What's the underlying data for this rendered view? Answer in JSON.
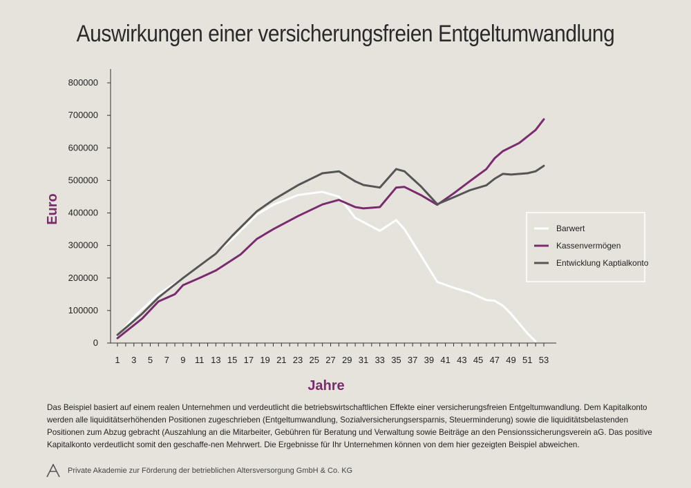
{
  "title": "Auswirkungen einer versicherungsfreien Entgeltumwandlung",
  "description": "Das Beispiel basiert auf einem realen Unternehmen und verdeutlicht die betriebswirtschaftlichen Effekte einer versicherungsfreien Entgeltumwandlung. Dem Kapitalkonto werden alle liquiditätserhöhenden Positionen zugeschrieben (Entgeltumwandlung, Sozialversicherungsersparnis, Steuerminderung) sowie die liquiditätsbelastenden Positionen zum Abzug gebracht (Auszahlung an die Mitarbeiter, Gebühren für Beratung und Verwaltung sowie Beiträge an den Pensionssicherungsverein aG. Das positive Kapitalkonto verdeutlicht somit den geschaffe-nen Mehrwert. Die Ergebnisse für Ihr Unternehmen können von dem hier gezeigten Beispiel abweichen.",
  "footer": "Private Akademie zur Förderung der betrieblichen Altersversorgung GmbH & Co. KG",
  "colors": {
    "background": "#e6e3dd",
    "barwert": "#ffffff",
    "kassenvermoegen": "#7a2b6e",
    "kapitalkonto": "#555555",
    "axis_title": "#7a2b6e"
  },
  "chart_data": {
    "type": "line",
    "xlabel": "Jahre",
    "ylabel": "Euro",
    "ylim": [
      0,
      800000
    ],
    "yticks": [
      0,
      100000,
      200000,
      300000,
      400000,
      500000,
      600000,
      700000,
      800000
    ],
    "xticks": [
      1,
      3,
      5,
      7,
      9,
      11,
      13,
      15,
      17,
      19,
      21,
      23,
      25,
      27,
      29,
      31,
      33,
      35,
      37,
      39,
      41,
      43,
      45,
      47,
      49,
      51,
      53
    ],
    "xlim": [
      1,
      53
    ],
    "grid": false,
    "legend_position": "right",
    "series": [
      {
        "name": "Barwert",
        "color": "#ffffff",
        "x": [
          1,
          3,
          6,
          9,
          12,
          15,
          18,
          20,
          23,
          26,
          28,
          30,
          33,
          35,
          36,
          38,
          40,
          42,
          44,
          46,
          47,
          48,
          49,
          51,
          52
        ],
        "y": [
          20000,
          80000,
          150000,
          200000,
          255000,
          320000,
          395000,
          425000,
          455000,
          465000,
          450000,
          385000,
          345000,
          378000,
          350000,
          270000,
          188000,
          170000,
          155000,
          132000,
          130000,
          115000,
          90000,
          30000,
          5000
        ]
      },
      {
        "name": "Kassenvermögen",
        "color": "#7a2b6e",
        "x": [
          1,
          4,
          6,
          8,
          9,
          11,
          13,
          16,
          18,
          20,
          23,
          26,
          28,
          30,
          31,
          33,
          35,
          36,
          38,
          40,
          42,
          44,
          46,
          47,
          48,
          50,
          52,
          53
        ],
        "y": [
          15000,
          75000,
          128000,
          150000,
          178000,
          200000,
          223000,
          272000,
          320000,
          350000,
          390000,
          426000,
          440000,
          418000,
          414000,
          418000,
          478000,
          480000,
          455000,
          425000,
          460000,
          498000,
          535000,
          568000,
          590000,
          615000,
          655000,
          688000
        ]
      },
      {
        "name": "Entwicklung Kaptialkonto",
        "color": "#555555",
        "x": [
          1,
          4,
          6,
          9,
          13,
          15,
          18,
          20,
          23,
          26,
          28,
          30,
          31,
          33,
          35,
          36,
          38,
          40,
          42,
          44,
          46,
          47,
          48,
          49,
          51,
          52,
          53
        ],
        "y": [
          25000,
          90000,
          140000,
          200000,
          275000,
          330000,
          405000,
          440000,
          485000,
          522000,
          528000,
          497000,
          486000,
          478000,
          535000,
          528000,
          482000,
          427000,
          448000,
          470000,
          485000,
          505000,
          520000,
          518000,
          522000,
          528000,
          545000
        ]
      }
    ]
  }
}
